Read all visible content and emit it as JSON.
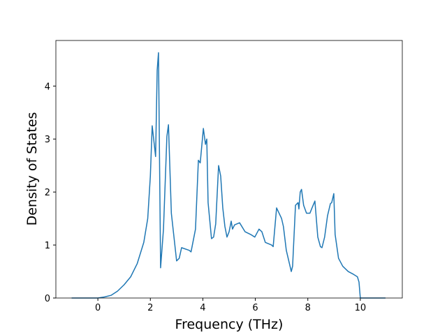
{
  "chart_data": {
    "type": "line",
    "x_label": "Frequency (THz)",
    "y_label": "Density of States",
    "x": [
      -1,
      -0.5,
      0,
      0.25,
      0.5,
      0.75,
      1,
      1.25,
      1.5,
      1.75,
      1.9,
      2.0,
      2.07,
      2.2,
      2.26,
      2.31,
      2.39,
      2.5,
      2.63,
      2.69,
      2.8,
      3.0,
      3.1,
      3.19,
      3.48,
      3.55,
      3.72,
      3.83,
      3.9,
      4.02,
      4.1,
      4.15,
      4.2,
      4.33,
      4.41,
      4.49,
      4.6,
      4.68,
      4.76,
      4.84,
      4.92,
      5.0,
      5.08,
      5.13,
      5.21,
      5.4,
      5.61,
      5.82,
      5.98,
      6.14,
      6.25,
      6.38,
      6.62,
      6.68,
      6.81,
      7.0,
      7.07,
      7.18,
      7.37,
      7.42,
      7.53,
      7.63,
      7.66,
      7.71,
      7.76,
      7.84,
      7.95,
      8.08,
      8.16,
      8.27,
      8.38,
      8.48,
      8.54,
      8.64,
      8.75,
      8.86,
      8.91,
      8.99,
      9.04,
      9.17,
      9.33,
      9.54,
      9.73,
      9.89,
      9.95,
      10.0,
      10.96
    ],
    "values": [
      0,
      0,
      0,
      0.02,
      0.05,
      0.13,
      0.25,
      0.4,
      0.65,
      1.05,
      1.5,
      2.3,
      3.25,
      2.67,
      4.3,
      4.63,
      0.57,
      1.3,
      3.05,
      3.27,
      1.6,
      0.7,
      0.75,
      0.95,
      0.9,
      0.87,
      1.3,
      2.6,
      2.55,
      3.2,
      2.9,
      3.0,
      1.8,
      1.12,
      1.15,
      1.4,
      2.5,
      2.3,
      1.7,
      1.35,
      1.15,
      1.25,
      1.45,
      1.3,
      1.38,
      1.42,
      1.25,
      1.2,
      1.15,
      1.3,
      1.25,
      1.05,
      1.0,
      0.97,
      1.7,
      1.5,
      1.35,
      0.9,
      0.5,
      0.6,
      1.75,
      1.8,
      1.68,
      2.0,
      2.05,
      1.75,
      1.6,
      1.6,
      1.7,
      1.83,
      1.15,
      0.97,
      0.95,
      1.15,
      1.55,
      1.78,
      1.8,
      1.97,
      1.2,
      0.75,
      0.6,
      0.5,
      0.45,
      0.4,
      0.3,
      0,
      0
    ],
    "color": "#1f77b4",
    "xlim": [
      -1.6,
      11.6
    ],
    "ylim": [
      0,
      4.86
    ],
    "xticks": [
      0,
      2,
      4,
      6,
      8,
      10
    ],
    "yticks": [
      0,
      1,
      2,
      3,
      4
    ],
    "grid": false
  }
}
